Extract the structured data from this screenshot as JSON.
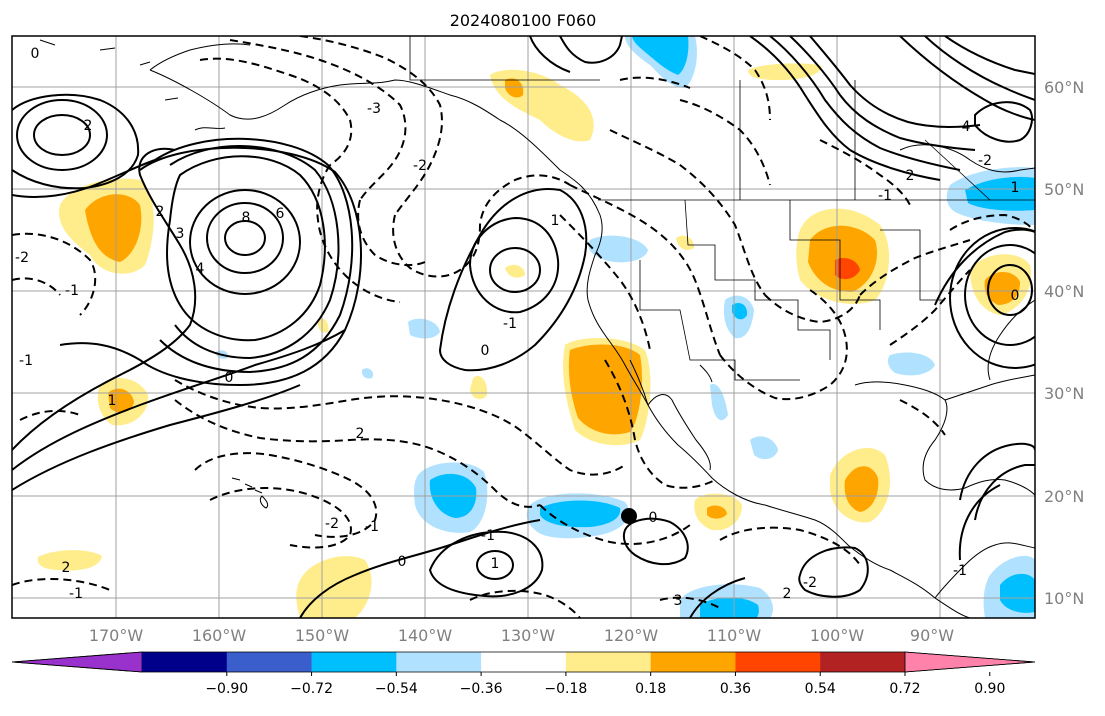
{
  "title": "2024080100 F060",
  "lat_labels": [
    "60°N",
    "50°N",
    "40°N",
    "30°N",
    "20°N",
    "10°N"
  ],
  "lon_labels": [
    "170°W",
    "160°W",
    "150°W",
    "140°W",
    "130°W",
    "120°W",
    "110°W",
    "100°W",
    "90°W"
  ],
  "colorbar": {
    "tick_labels": [
      "−0.90",
      "−0.72",
      "−0.54",
      "−0.36",
      "−0.18",
      "0.18",
      "0.36",
      "0.54",
      "0.72",
      "0.90"
    ],
    "colors": [
      "#9932cc",
      "#00008b",
      "#3a5fcd",
      "#00bfff",
      "#b0e2ff",
      "#ffffff",
      "#ffec8b",
      "#ffa500",
      "#ff4500",
      "#b22222",
      "#ff82ab"
    ]
  },
  "contour_labels": [
    "0",
    "2",
    "-2",
    "-1",
    "8",
    "6",
    "4",
    "3",
    "2",
    "-3",
    "-2",
    "1",
    "-1",
    "0",
    "2",
    "-1",
    "0",
    "-2",
    "-1",
    "0",
    "1",
    "2",
    "-1",
    "0",
    "-1",
    "1",
    "-2",
    "2",
    "3",
    "4",
    "-2",
    "-1",
    "1",
    "2",
    "-1",
    "0"
  ],
  "colors": {
    "neg_strong": "#00bfff",
    "neg_weak": "#b0e2ff",
    "pos_weak": "#ffec8b",
    "pos_mid": "#ffa500",
    "pos_strong": "#ff4500"
  }
}
